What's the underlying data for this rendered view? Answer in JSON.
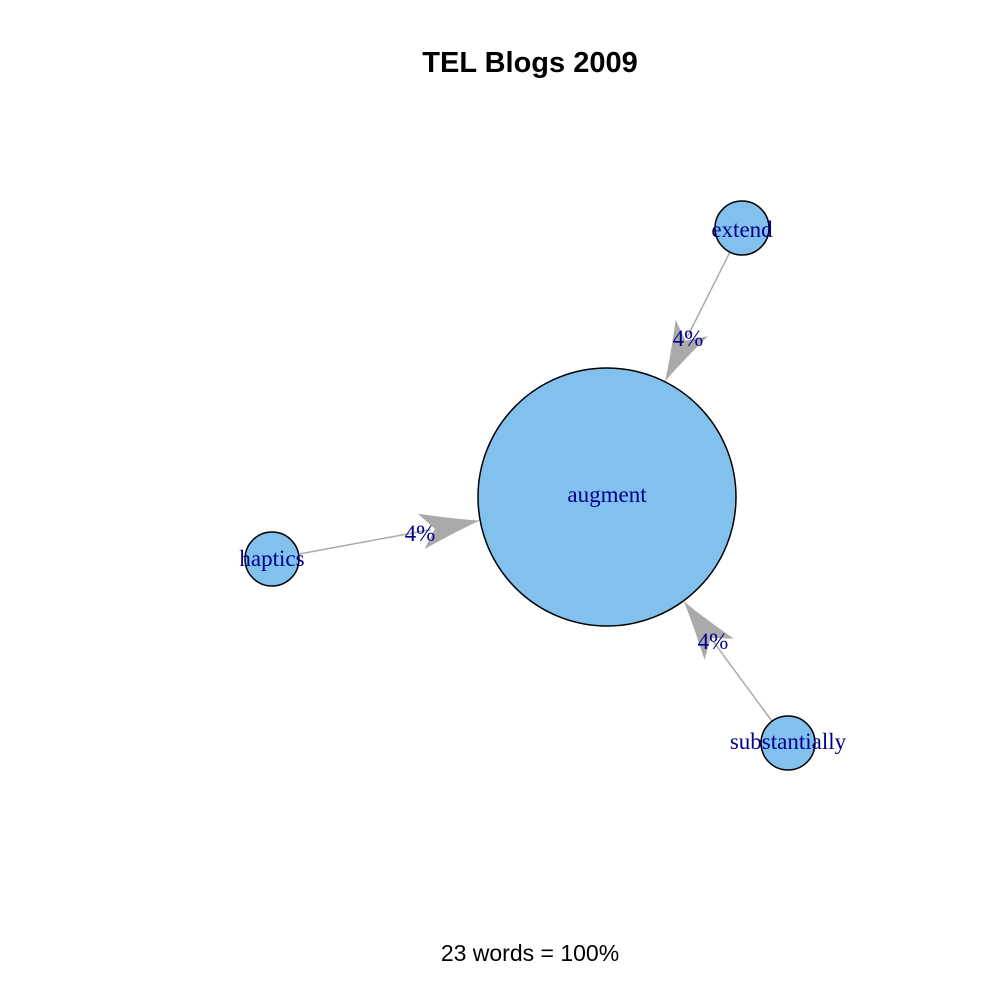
{
  "title": "TEL Blogs 2009",
  "footer": "23 words = 100%",
  "colors": {
    "node_fill": "#82c1ee",
    "node_stroke": "#000000",
    "edge": "#aaaaaa",
    "label": "#00008b"
  },
  "nodes": [
    {
      "id": "augment",
      "label": "augment"
    },
    {
      "id": "extend",
      "label": "extend"
    },
    {
      "id": "haptics",
      "label": "haptics"
    },
    {
      "id": "substantially",
      "label": "substantially"
    }
  ],
  "edges": [
    {
      "from": "extend",
      "to": "augment",
      "label": "4%"
    },
    {
      "from": "haptics",
      "to": "augment",
      "label": "4%"
    },
    {
      "from": "substantially",
      "to": "augment",
      "label": "4%"
    }
  ]
}
